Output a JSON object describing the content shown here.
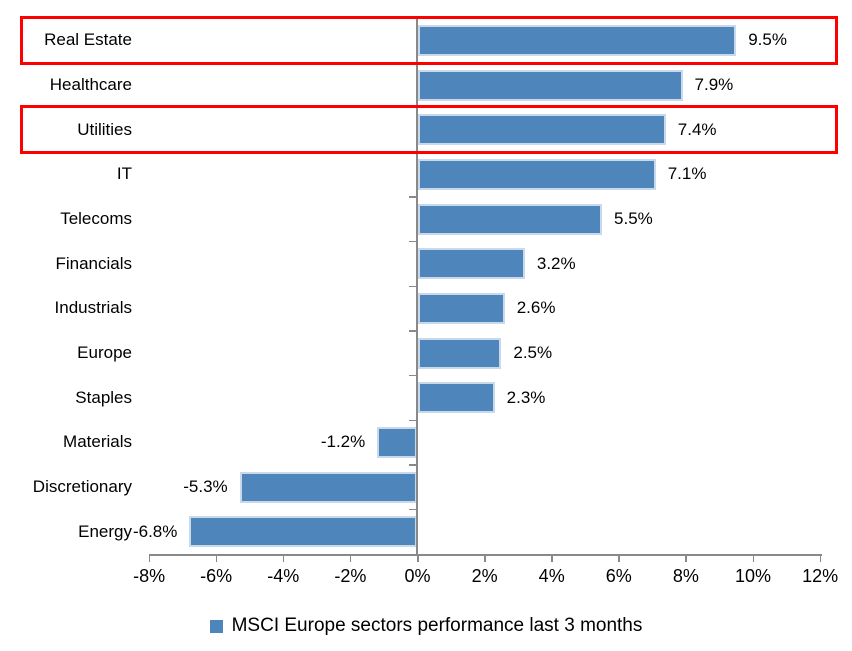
{
  "chart_data": {
    "type": "bar",
    "orientation": "horizontal",
    "title": "",
    "categories": [
      "Real Estate",
      "Healthcare",
      "Utilities",
      "IT",
      "Telecoms",
      "Financials",
      "Industrials",
      "Europe",
      "Staples",
      "Materials",
      "Discretionary",
      "Energy"
    ],
    "values": [
      9.5,
      7.9,
      7.4,
      7.1,
      5.5,
      3.2,
      2.6,
      2.5,
      2.3,
      -1.2,
      -5.3,
      -6.8
    ],
    "value_labels": [
      "9.5%",
      "7.9%",
      "7.4%",
      "7.1%",
      "5.5%",
      "3.2%",
      "2.6%",
      "2.5%",
      "2.3%",
      "-1.2%",
      "-5.3%",
      "-6.8%"
    ],
    "x_ticks": [
      -8,
      -6,
      -4,
      -2,
      0,
      2,
      4,
      6,
      8,
      10,
      12
    ],
    "x_tick_labels": [
      "-8%",
      "-6%",
      "-4%",
      "-2%",
      "0%",
      "2%",
      "4%",
      "6%",
      "8%",
      "10%",
      "12%"
    ],
    "xlim": [
      -8,
      12
    ],
    "grid": false,
    "value_label_position": "outside-end",
    "highlighted_categories": [
      "Real Estate",
      "Utilities"
    ],
    "legend_position": "bottom",
    "colors": {
      "bar_fill": "#4E86BC",
      "bar_border": "#C9D9EC",
      "highlight_box": "#FF0000",
      "axis": "#898989",
      "text": "#000000",
      "background": "#FFFFFF"
    }
  },
  "legend": {
    "label": "MSCI Europe sectors performance last 3 months"
  }
}
